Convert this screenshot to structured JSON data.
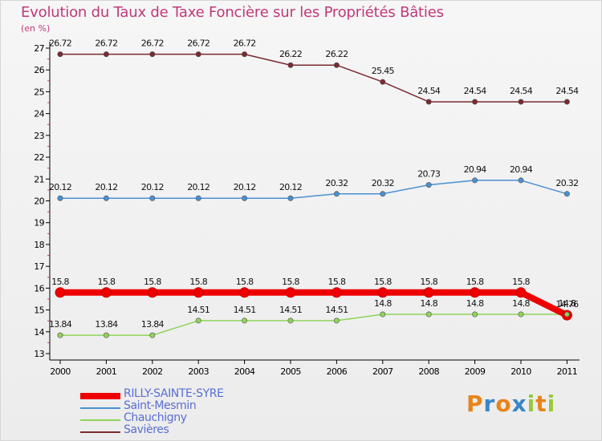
{
  "title": "Evolution du Taux de Taxe Foncière sur les Propriétés Bâties",
  "unit_label": "(en %)",
  "logo": {
    "letters": [
      "P",
      "r",
      "o",
      "x",
      "i",
      "t",
      "i"
    ],
    "colors": [
      "#e8841a",
      "#3a86c8",
      "#e8841a",
      "#3a86c8",
      "#9ac83a",
      "#e8841a",
      "#9ac83a"
    ]
  },
  "chart_data": {
    "type": "line",
    "title": "Evolution du Taux de Taxe Foncière sur les Propriétés Bâties",
    "ylabel": "(en %)",
    "xlabel": "",
    "x": [
      "2000",
      "2001",
      "2002",
      "2003",
      "2004",
      "2005",
      "2006",
      "2007",
      "2008",
      "2009",
      "2010",
      "2011"
    ],
    "ylim": [
      13,
      27
    ],
    "yticks": [
      "13",
      "14",
      "15",
      "16",
      "17",
      "18",
      "19",
      "20",
      "21",
      "22",
      "23",
      "24",
      "25",
      "26",
      "27"
    ],
    "grid": false,
    "legend_position": "bottom-left",
    "series": [
      {
        "name": "Savières",
        "color": "#7a2a30",
        "values": [
          26.72,
          26.72,
          26.72,
          26.72,
          26.72,
          26.22,
          26.22,
          25.45,
          24.54,
          24.54,
          24.54,
          24.54
        ],
        "labels": [
          "26.72",
          "26.72",
          "26.72",
          "26.72",
          "26.72",
          "26.22",
          "26.22",
          "25.45",
          "24.54",
          "24.54",
          "24.54",
          "24.54"
        ]
      },
      {
        "name": "Saint-Mesmin",
        "color": "#4a90d0",
        "values": [
          20.12,
          20.12,
          20.12,
          20.12,
          20.12,
          20.12,
          20.32,
          20.32,
          20.73,
          20.94,
          20.94,
          20.32
        ],
        "labels": [
          "20.12",
          "20.12",
          "20.12",
          "20.12",
          "20.12",
          "20.12",
          "20.32",
          "20.32",
          "20.73",
          "20.94",
          "20.94",
          "20.32"
        ]
      },
      {
        "name": "Chauchigny",
        "color": "#8fd45a",
        "values": [
          13.84,
          13.84,
          13.84,
          14.51,
          14.51,
          14.51,
          14.51,
          14.8,
          14.8,
          14.8,
          14.8,
          14.8
        ],
        "labels": [
          "13.84",
          "13.84",
          "13.84",
          "14.51",
          "14.51",
          "14.51",
          "14.51",
          "14.8",
          "14.8",
          "14.8",
          "14.8",
          "14.8"
        ]
      },
      {
        "name": "RILLY-SAINTE-SYRE",
        "color": "#ee0000",
        "values": [
          15.8,
          15.8,
          15.8,
          15.8,
          15.8,
          15.8,
          15.8,
          15.8,
          15.8,
          15.8,
          15.8,
          14.76
        ],
        "labels": [
          "15.8",
          "15.8",
          "15.8",
          "15.8",
          "15.8",
          "15.8",
          "15.8",
          "15.8",
          "15.8",
          "15.8",
          "15.8",
          "14.76"
        ]
      }
    ],
    "legend_order": [
      "RILLY-SAINTE-SYRE",
      "Saint-Mesmin",
      "Chauchigny",
      "Savières"
    ]
  }
}
